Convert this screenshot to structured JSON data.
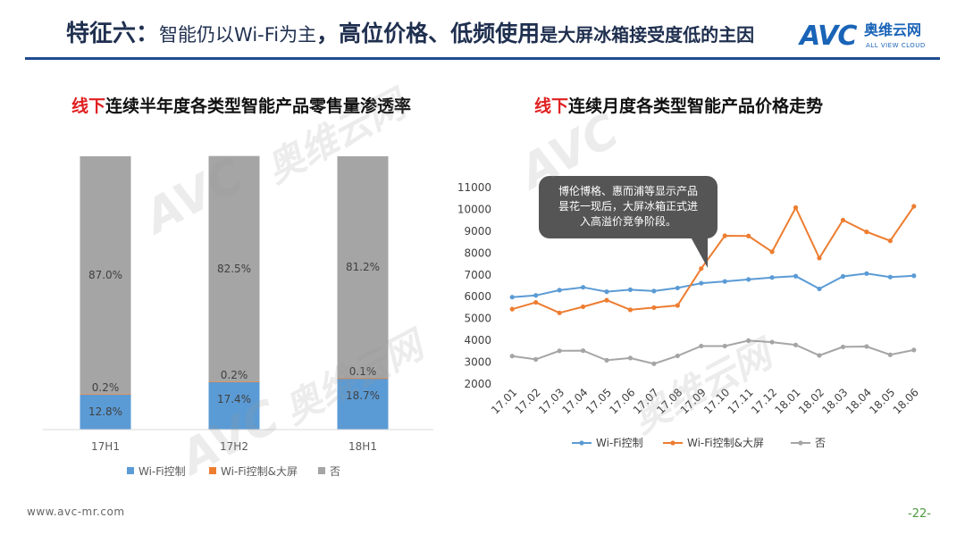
{
  "header": {
    "title_part1": "特征六",
    "title_sep": "：",
    "title_part2": "智能仍以Wi-Fi为主",
    "title_part3": "，高位价格、低频使用",
    "title_part4": "是大屏冰箱接受度低的主因"
  },
  "logo": {
    "mark": "AVC",
    "brand_cn": "奥维云网",
    "brand_en": "ALL VIEW CLOUD"
  },
  "watermarks": [
    "AVC",
    "奥维云网"
  ],
  "left_chart": {
    "title_red": "线下",
    "title_rest": "连续半年度各类型智能产品零售量渗透率"
  },
  "right_chart": {
    "title_red": "线下",
    "title_rest": "连续月度各类型智能产品价格走势",
    "callout": [
      "博伦博格、惠而浦等显示产品",
      "昙花一现后，大屏冰箱正式进",
      "入高溢价竞争阶段。"
    ]
  },
  "footer": {
    "url": "www.avc-mr.com",
    "page": "-22-"
  },
  "colors": {
    "wifi": "#5b9bd5",
    "wifi_big": "#ed7d31",
    "none": "#a5a5a5",
    "accent_red": "#e02020",
    "title_navy": "#1f2f4f"
  },
  "chart_data": [
    {
      "type": "bar",
      "stacked": true,
      "categories": [
        "17H1",
        "17H2",
        "18H1"
      ],
      "series": [
        {
          "name": "Wi-Fi控制",
          "values": [
            12.8,
            17.4,
            18.7
          ],
          "labels": [
            "12.8%",
            "17.4%",
            "18.7%"
          ]
        },
        {
          "name": "Wi-Fi控制&大屏",
          "values": [
            0.2,
            0.2,
            0.1
          ],
          "labels": [
            "0.2%",
            "0.2%",
            "0.1%"
          ]
        },
        {
          "name": "否",
          "values": [
            87.0,
            82.5,
            81.2
          ],
          "labels": [
            "87.0%",
            "82.5%",
            "81.2%"
          ]
        }
      ],
      "ylim": [
        0,
        100
      ],
      "legend": "bottom"
    },
    {
      "type": "line",
      "x": [
        "17.01",
        "17.02",
        "17.03",
        "17.04",
        "17.05",
        "17.06",
        "17.07",
        "17.08",
        "17.09",
        "17.10",
        "17.11",
        "17.12",
        "18.01",
        "18.02",
        "18.03",
        "18.04",
        "18.05",
        "18.06"
      ],
      "series": [
        {
          "name": "Wi-Fi控制",
          "values": [
            5980,
            6060,
            6300,
            6430,
            6230,
            6320,
            6260,
            6400,
            6620,
            6700,
            6790,
            6880,
            6940,
            6360,
            6930,
            7060,
            6900,
            6960
          ]
        },
        {
          "name": "Wi-Fi控制&大屏",
          "values": [
            5430,
            5740,
            5260,
            5540,
            5840,
            5400,
            5500,
            5600,
            7290,
            8790,
            8780,
            8060,
            10080,
            7770,
            9510,
            8970,
            8560,
            10140
          ]
        },
        {
          "name": "否",
          "values": [
            3280,
            3130,
            3520,
            3530,
            3090,
            3190,
            2930,
            3290,
            3740,
            3740,
            3990,
            3920,
            3790,
            3310,
            3700,
            3720,
            3340,
            3560
          ]
        }
      ],
      "yticks": [
        "2000",
        "3000",
        "4000",
        "5000",
        "6000",
        "7000",
        "8000",
        "9000",
        "10000",
        "11000"
      ],
      "ylim": [
        2000,
        11000
      ],
      "legend": "bottom"
    }
  ]
}
